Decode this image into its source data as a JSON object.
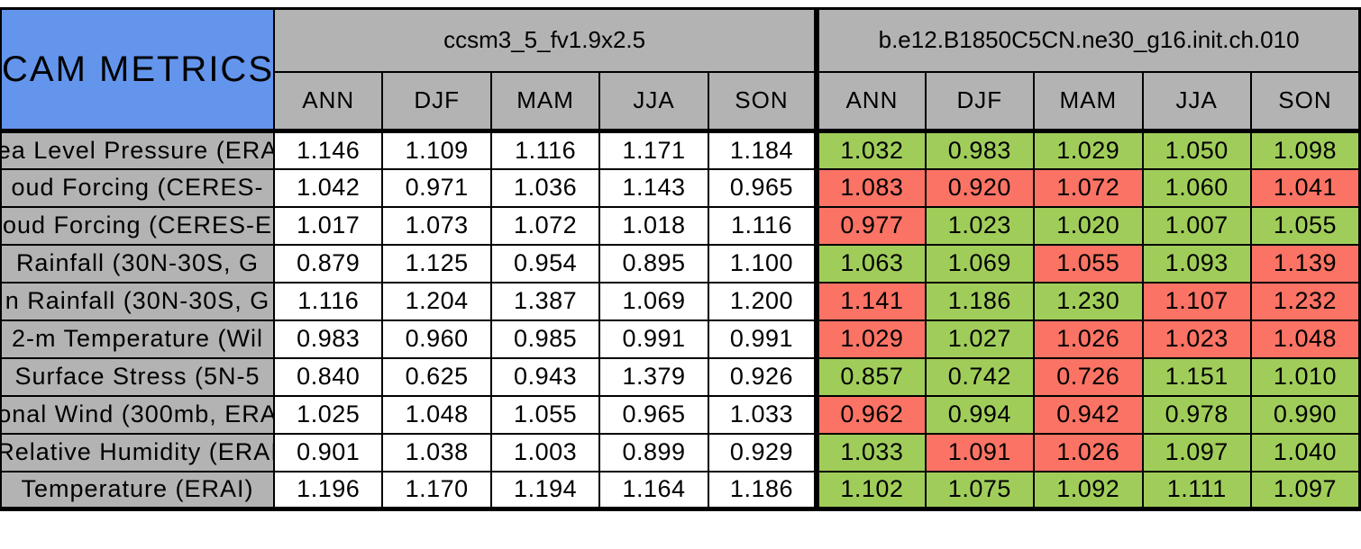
{
  "title": "CAM METRICS",
  "colors": {
    "header_blue": "#6495ED",
    "header_gray": "#B3B3B3",
    "cell_green": "#A0CD5A",
    "cell_red": "#FA7364",
    "cell_white": "#FFFFFF",
    "border_black": "#000000"
  },
  "chart_data": {
    "type": "table",
    "title": "CAM METRICS",
    "groups": [
      {
        "name": "ccsm3_5_fv1.9x2.5",
        "seasons": [
          "ANN",
          "DJF",
          "MAM",
          "JJA",
          "SON"
        ]
      },
      {
        "name": "b.e12.B1850C5CN.ne30_g16.init.ch.010",
        "seasons": [
          "ANN",
          "DJF",
          "MAM",
          "JJA",
          "SON"
        ]
      }
    ],
    "rows": [
      {
        "label": "ea Level Pressure (ERA",
        "model1": [
          "1.146",
          "1.109",
          "1.116",
          "1.171",
          "1.184"
        ],
        "model2": [
          {
            "value": "1.032",
            "status": "green"
          },
          {
            "value": "0.983",
            "status": "green"
          },
          {
            "value": "1.029",
            "status": "green"
          },
          {
            "value": "1.050",
            "status": "green"
          },
          {
            "value": "1.098",
            "status": "green"
          }
        ]
      },
      {
        "label": "oud Forcing (CERES-",
        "model1": [
          "1.042",
          "0.971",
          "1.036",
          "1.143",
          "0.965"
        ],
        "model2": [
          {
            "value": "1.083",
            "status": "red"
          },
          {
            "value": "0.920",
            "status": "red"
          },
          {
            "value": "1.072",
            "status": "red"
          },
          {
            "value": "1.060",
            "status": "green"
          },
          {
            "value": "1.041",
            "status": "red"
          }
        ]
      },
      {
        "label": "oud Forcing (CERES-E",
        "model1": [
          "1.017",
          "1.073",
          "1.072",
          "1.018",
          "1.116"
        ],
        "model2": [
          {
            "value": "0.977",
            "status": "red"
          },
          {
            "value": "1.023",
            "status": "green"
          },
          {
            "value": "1.020",
            "status": "green"
          },
          {
            "value": "1.007",
            "status": "green"
          },
          {
            "value": "1.055",
            "status": "green"
          }
        ]
      },
      {
        "label": "Rainfall (30N-30S, G",
        "model1": [
          "0.879",
          "1.125",
          "0.954",
          "0.895",
          "1.100"
        ],
        "model2": [
          {
            "value": "1.063",
            "status": "green"
          },
          {
            "value": "1.069",
            "status": "green"
          },
          {
            "value": "1.055",
            "status": "red"
          },
          {
            "value": "1.093",
            "status": "green"
          },
          {
            "value": "1.139",
            "status": "red"
          }
        ]
      },
      {
        "label": "n Rainfall (30N-30S, G",
        "model1": [
          "1.116",
          "1.204",
          "1.387",
          "1.069",
          "1.200"
        ],
        "model2": [
          {
            "value": "1.141",
            "status": "red"
          },
          {
            "value": "1.186",
            "status": "green"
          },
          {
            "value": "1.230",
            "status": "green"
          },
          {
            "value": "1.107",
            "status": "red"
          },
          {
            "value": "1.232",
            "status": "red"
          }
        ]
      },
      {
        "label": "2-m Temperature (Wil",
        "model1": [
          "0.983",
          "0.960",
          "0.985",
          "0.991",
          "0.991"
        ],
        "model2": [
          {
            "value": "1.029",
            "status": "red"
          },
          {
            "value": "1.027",
            "status": "green"
          },
          {
            "value": "1.026",
            "status": "red"
          },
          {
            "value": "1.023",
            "status": "red"
          },
          {
            "value": "1.048",
            "status": "red"
          }
        ]
      },
      {
        "label": "Surface Stress (5N-5",
        "model1": [
          "0.840",
          "0.625",
          "0.943",
          "1.379",
          "0.926"
        ],
        "model2": [
          {
            "value": "0.857",
            "status": "green"
          },
          {
            "value": "0.742",
            "status": "green"
          },
          {
            "value": "0.726",
            "status": "red"
          },
          {
            "value": "1.151",
            "status": "green"
          },
          {
            "value": "1.010",
            "status": "green"
          }
        ]
      },
      {
        "label": "onal Wind (300mb, ERA",
        "model1": [
          "1.025",
          "1.048",
          "1.055",
          "0.965",
          "1.033"
        ],
        "model2": [
          {
            "value": "0.962",
            "status": "red"
          },
          {
            "value": "0.994",
            "status": "green"
          },
          {
            "value": "0.942",
            "status": "red"
          },
          {
            "value": "0.978",
            "status": "green"
          },
          {
            "value": "0.990",
            "status": "green"
          }
        ]
      },
      {
        "label": "Relative Humidity (ERAI",
        "model1": [
          "0.901",
          "1.038",
          "1.003",
          "0.899",
          "0.929"
        ],
        "model2": [
          {
            "value": "1.033",
            "status": "green"
          },
          {
            "value": "1.091",
            "status": "red"
          },
          {
            "value": "1.026",
            "status": "red"
          },
          {
            "value": "1.097",
            "status": "green"
          },
          {
            "value": "1.040",
            "status": "green"
          }
        ]
      },
      {
        "label": "Temperature (ERAI)",
        "model1": [
          "1.196",
          "1.170",
          "1.194",
          "1.164",
          "1.186"
        ],
        "model2": [
          {
            "value": "1.102",
            "status": "green"
          },
          {
            "value": "1.075",
            "status": "green"
          },
          {
            "value": "1.092",
            "status": "green"
          },
          {
            "value": "1.111",
            "status": "green"
          },
          {
            "value": "1.097",
            "status": "green"
          }
        ]
      }
    ]
  }
}
